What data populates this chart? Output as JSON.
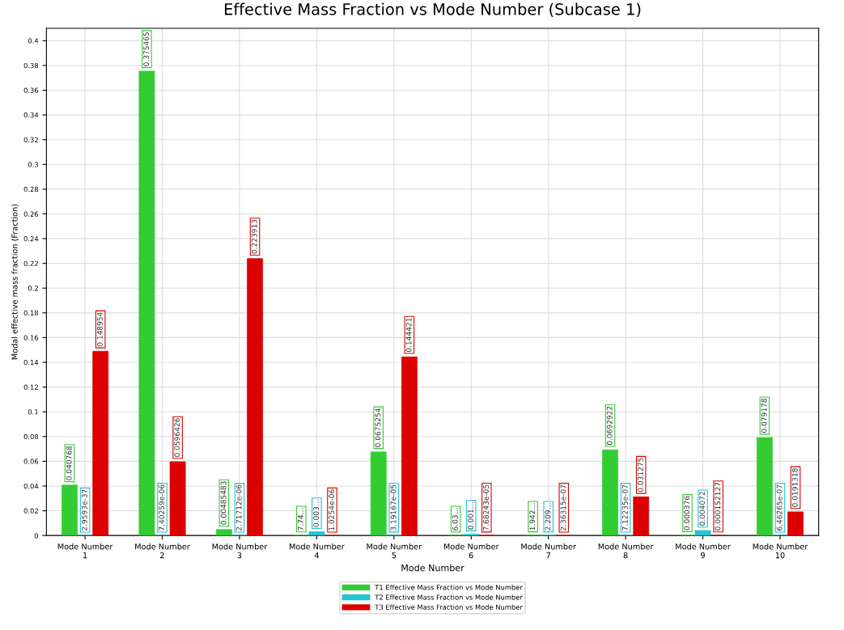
{
  "chart_data": {
    "type": "bar",
    "title": "Effective Mass Fraction vs Mode Number (Subcase 1)",
    "xlabel": "Mode Number",
    "ylabel": "Modal effective mass fraction (Fraction)",
    "categories": [
      "Mode Number\n1",
      "Mode Number\n2",
      "Mode Number\n3",
      "Mode Number\n4",
      "Mode Number\n5",
      "Mode Number\n6",
      "Mode Number\n7",
      "Mode Number\n8",
      "Mode Number\n9",
      "Mode Number\n10"
    ],
    "series": [
      {
        "name": "T1 Effective Mass Fraction vs Mode Number",
        "color": "#33cc33",
        "values": [
          0.040768,
          0.375465,
          0.00485483,
          0.0001,
          0.0675254,
          0.0001,
          0.0002,
          0.0692922,
          0.000376,
          0.079178
        ],
        "value_labels": [
          "0.040768",
          "0.375465",
          "0.00485483",
          "7.74…",
          "0.0675254",
          "6.03…",
          "1.942…",
          "0.0692922",
          "0.000376",
          "0.079178"
        ]
      },
      {
        "name": "T2 Effective Mass Fraction vs Mode Number",
        "color": "#22c5d0",
        "values": [
          2.9593e-37,
          7.40259e-06,
          2.71712e-06,
          0.003,
          3.19167e-05,
          0.001,
          0.0002,
          7.12235e-07,
          0.004072,
          6.46265e-07
        ],
        "value_labels": [
          "2.9593e-37",
          "7.40259e-06",
          "2.71712e-06",
          "0.003…",
          "3.19167e-05",
          "0.001…",
          "2.209…",
          "7.12235e-07",
          "0.004072",
          "6.46265e-07"
        ]
      },
      {
        "name": "T3 Effective Mass Fraction vs Mode Number",
        "color": "#dd0000",
        "values": [
          0.148954,
          0.0596426,
          0.223913,
          1.0254e-06,
          0.144421,
          7.68243e-05,
          2.36315e-07,
          0.031275,
          0.000152127,
          0.0191318
        ],
        "value_labels": [
          "0.148954",
          "0.0596426",
          "0.223913",
          "1.0254e-06",
          "0.144421",
          "7.68243e-05",
          "2.36315e-07",
          "0.031275",
          "0.000152127",
          "0.0191318"
        ]
      }
    ],
    "ylim": [
      0,
      0.41
    ],
    "yticks": [
      0,
      0.02,
      0.04,
      0.06,
      0.08,
      0.1,
      0.12,
      0.14,
      0.16,
      0.18,
      0.2,
      0.22,
      0.24,
      0.26,
      0.28,
      0.3,
      0.32,
      0.34,
      0.36,
      0.38,
      0.4
    ],
    "grid": true,
    "legend": "bottom"
  }
}
